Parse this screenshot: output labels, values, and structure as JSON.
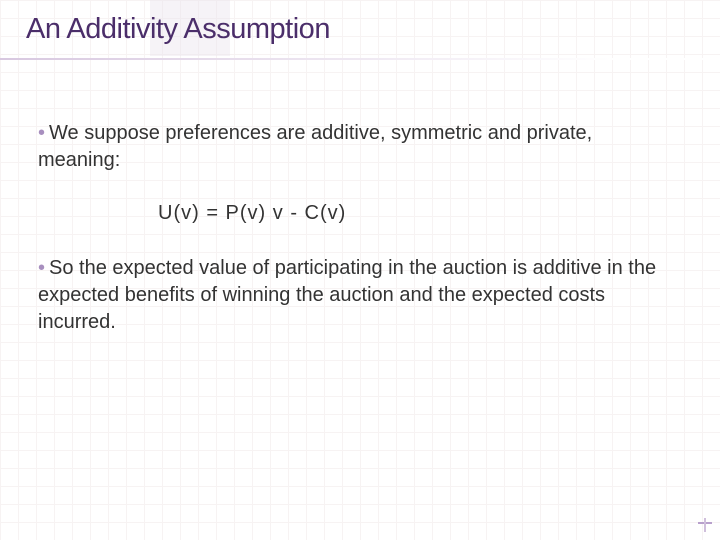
{
  "slide": {
    "title": "An Additivity Assumption",
    "title_color": "#4b2e6a",
    "title_fontsize": 29,
    "background_color": "#ffffff",
    "grid_color": "#f0e8e8",
    "bullet_color": "#a88fbf",
    "body_color": "#333333",
    "body_fontsize": 20,
    "bullets": [
      {
        "text": "We suppose preferences are additive, symmetric and private, meaning:"
      },
      {
        "text": "So the expected value of participating in the auction is additive in the expected benefits of winning the auction and the expected costs incurred."
      }
    ],
    "formula": "U(v)  =  P(v) v  -  C(v)",
    "accent_color": "#b8a0cc"
  }
}
